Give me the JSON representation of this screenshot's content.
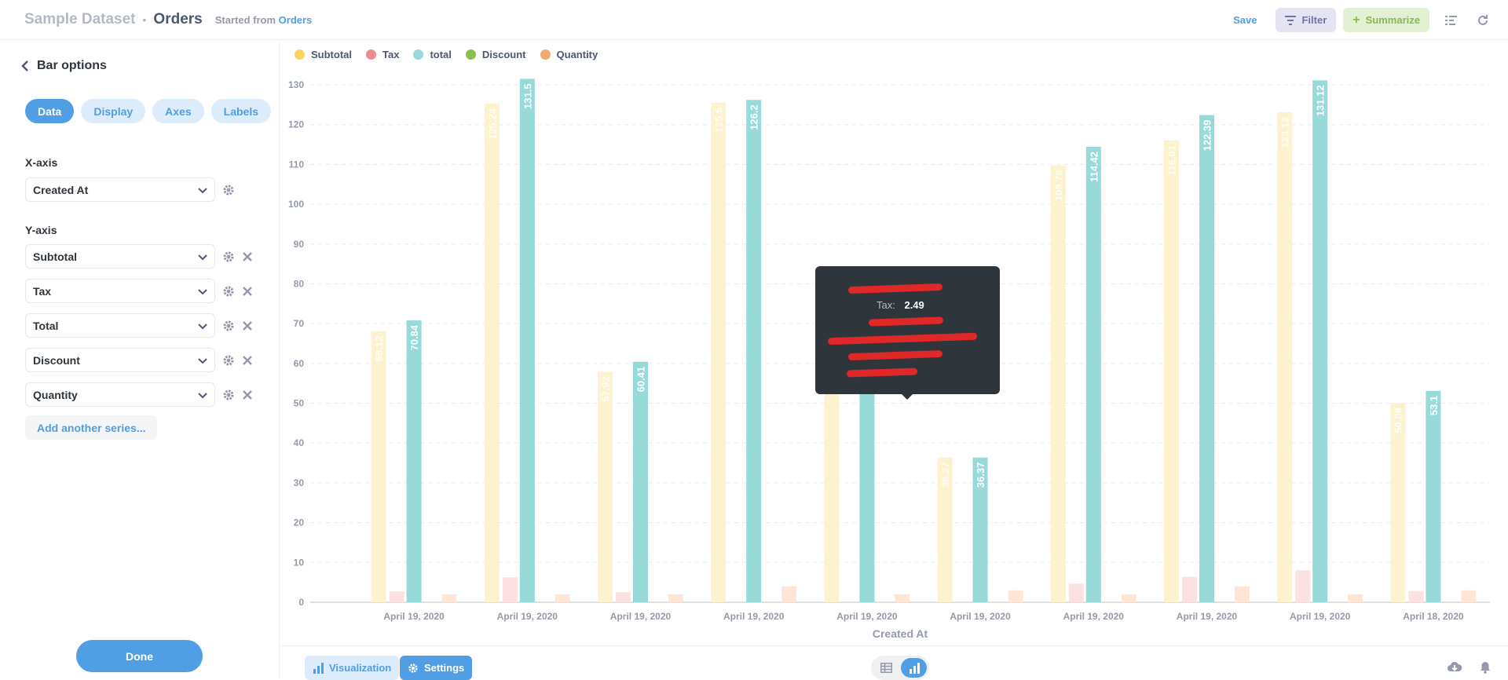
{
  "header": {
    "database": "Sample Dataset",
    "separator": "•",
    "title": "Orders",
    "origin_prefix": "Started from",
    "origin_link": "Orders",
    "save_label": "Save",
    "filter_label": "Filter",
    "summarize_label": "Summarize",
    "summarize_plus": "+"
  },
  "sidebar": {
    "back_label": "Bar options",
    "tabs": [
      {
        "label": "Data",
        "active": true
      },
      {
        "label": "Display",
        "active": false
      },
      {
        "label": "Axes",
        "active": false
      },
      {
        "label": "Labels",
        "active": false
      }
    ],
    "x_axis_label": "X-axis",
    "x_axis_value": "Created At",
    "y_axis_label": "Y-axis",
    "y_series": [
      "Subtotal",
      "Tax",
      "Total",
      "Discount",
      "Quantity"
    ],
    "add_series_label": "Add another series...",
    "done_label": "Done"
  },
  "tooltip": {
    "tax_key": "Tax:",
    "tax_value": "2.49"
  },
  "bottom_bar": {
    "visualization_label": "Visualization",
    "settings_label": "Settings"
  },
  "colors": {
    "accent": "#509ee3",
    "subtotal": "#f9d45c",
    "tax": "#ef8c8c",
    "total": "#98d9d9",
    "discount": "#88bf4d",
    "quantity": "#f2a86f"
  },
  "chart_data": {
    "type": "bar",
    "xlabel": "Created At",
    "ylabel": "",
    "ylim": [
      0,
      130
    ],
    "yticks": [
      0,
      10,
      20,
      30,
      40,
      50,
      60,
      70,
      80,
      90,
      100,
      110,
      120,
      130
    ],
    "grid": true,
    "legend_position": "top-left",
    "categories": [
      "April 19, 2020",
      "April 19, 2020",
      "April 19, 2020",
      "April 19, 2020",
      "April 19, 2020",
      "April 19, 2020",
      "April 19, 2020",
      "April 19, 2020",
      "April 19, 2020",
      "April 18, 2020"
    ],
    "series": [
      {
        "name": "Subtotal",
        "color": "#f9d45c",
        "values": [
          68.12,
          125.24,
          57.92,
          125.5,
          75.03,
          36.37,
          109.78,
          116.01,
          123.12,
          50.09
        ]
      },
      {
        "name": "Tax",
        "color": "#ef8c8c",
        "values": [
          2.72,
          6.26,
          2.49,
          0,
          0,
          0,
          4.66,
          6.38,
          8.0,
          2.84
        ]
      },
      {
        "name": "total",
        "color": "#98d9d9",
        "values": [
          70.84,
          131.5,
          60.41,
          126.2,
          75.03,
          36.37,
          114.42,
          122.39,
          131.12,
          53.1
        ]
      },
      {
        "name": "Discount",
        "color": "#88bf4d",
        "values": [
          0,
          0,
          0,
          0,
          0,
          0,
          0,
          0,
          0,
          0
        ]
      },
      {
        "name": "Quantity",
        "color": "#f2a86f",
        "values": [
          2,
          2,
          2,
          4,
          2,
          3,
          2,
          4,
          2,
          3
        ]
      }
    ],
    "data_labels": {
      "Subtotal": [
        "68.12",
        "125.24",
        "57.92",
        "125.5",
        "75.03",
        "36.37",
        "109.78",
        "116.01",
        "123.12",
        "50.09"
      ],
      "total": [
        "70.84",
        "131.5",
        "60.41",
        "126.2",
        "75.03",
        "36.37",
        "114.42",
        "122.39",
        "131.12",
        "53.1"
      ]
    },
    "highlighted_index": 2
  }
}
